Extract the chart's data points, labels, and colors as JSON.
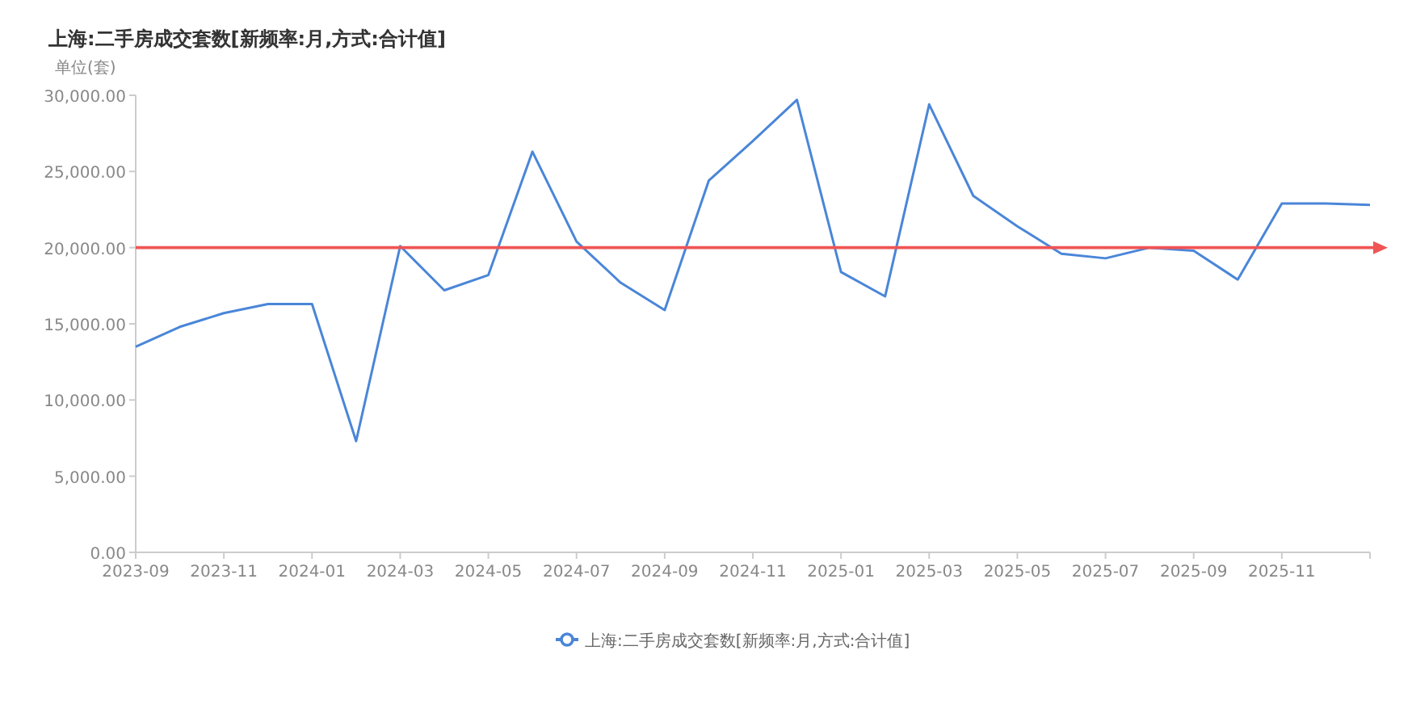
{
  "chart_data": {
    "type": "line",
    "title": "上海:二手房成交套数[新频率:月,方式:合计值]",
    "ylabel": "单位(套)",
    "x": [
      "2023-09",
      "2023-10",
      "2023-11",
      "2023-12",
      "2024-01",
      "2024-02",
      "2024-03",
      "2024-04",
      "2024-05",
      "2024-06",
      "2024-07",
      "2024-08",
      "2024-09",
      "2024-10",
      "2024-11",
      "2024-12",
      "2025-01",
      "2025-02",
      "2025-03",
      "2025-04",
      "2025-05",
      "2025-06",
      "2025-07",
      "2025-08",
      "2025-09",
      "2025-10",
      "2025-11",
      "2025-12",
      "2026-01"
    ],
    "series": [
      {
        "name": "上海:二手房成交套数[新频率:月,方式:合计值]",
        "color": "#4a86d8",
        "values": [
          13500,
          14800,
          15700,
          16300,
          16300,
          7300,
          20100,
          17200,
          18200,
          26300,
          20400,
          17700,
          15900,
          24400,
          27000,
          29700,
          18400,
          16800,
          29400,
          23400,
          21400,
          19600,
          19300,
          20000,
          19800,
          17900,
          22900,
          22900,
          22800
        ]
      }
    ],
    "xlim": [
      "2023-09",
      "2026-01"
    ],
    "xticks": [
      {
        "value": "2023-09",
        "label": "2023-09"
      },
      {
        "value": "2023-11",
        "label": "2023-11"
      },
      {
        "value": "2024-01",
        "label": "2024-01"
      },
      {
        "value": "2024-03",
        "label": "2024-03"
      },
      {
        "value": "2024-05",
        "label": "2024-05"
      },
      {
        "value": "2024-07",
        "label": "2024-07"
      },
      {
        "value": "2024-09",
        "label": "2024-09"
      },
      {
        "value": "2024-11",
        "label": "2024-11"
      },
      {
        "value": "2025-01",
        "label": "2025-01"
      },
      {
        "value": "2025-03",
        "label": "2025-03"
      },
      {
        "value": "2025-05",
        "label": "2025-05"
      },
      {
        "value": "2025-07",
        "label": "2025-07"
      },
      {
        "value": "2025-09",
        "label": "2025-09"
      },
      {
        "value": "2025-11",
        "label": "2025-11"
      }
    ],
    "ylim": [
      0,
      30000
    ],
    "yticks": [
      {
        "value": 0,
        "label": "0.00"
      },
      {
        "value": 5000,
        "label": "5,000.00"
      },
      {
        "value": 10000,
        "label": "10,000.00"
      },
      {
        "value": 15000,
        "label": "15,000.00"
      },
      {
        "value": 20000,
        "label": "20,000.00"
      },
      {
        "value": 25000,
        "label": "25,000.00"
      },
      {
        "value": 30000,
        "label": "30,000.00"
      }
    ],
    "ref_lines": [
      {
        "axis": "y",
        "value": 20000,
        "color": "#f05454",
        "line_style": "solid"
      }
    ],
    "grid": false,
    "legend": "bottom",
    "line_style": "solid",
    "marker": "none"
  }
}
